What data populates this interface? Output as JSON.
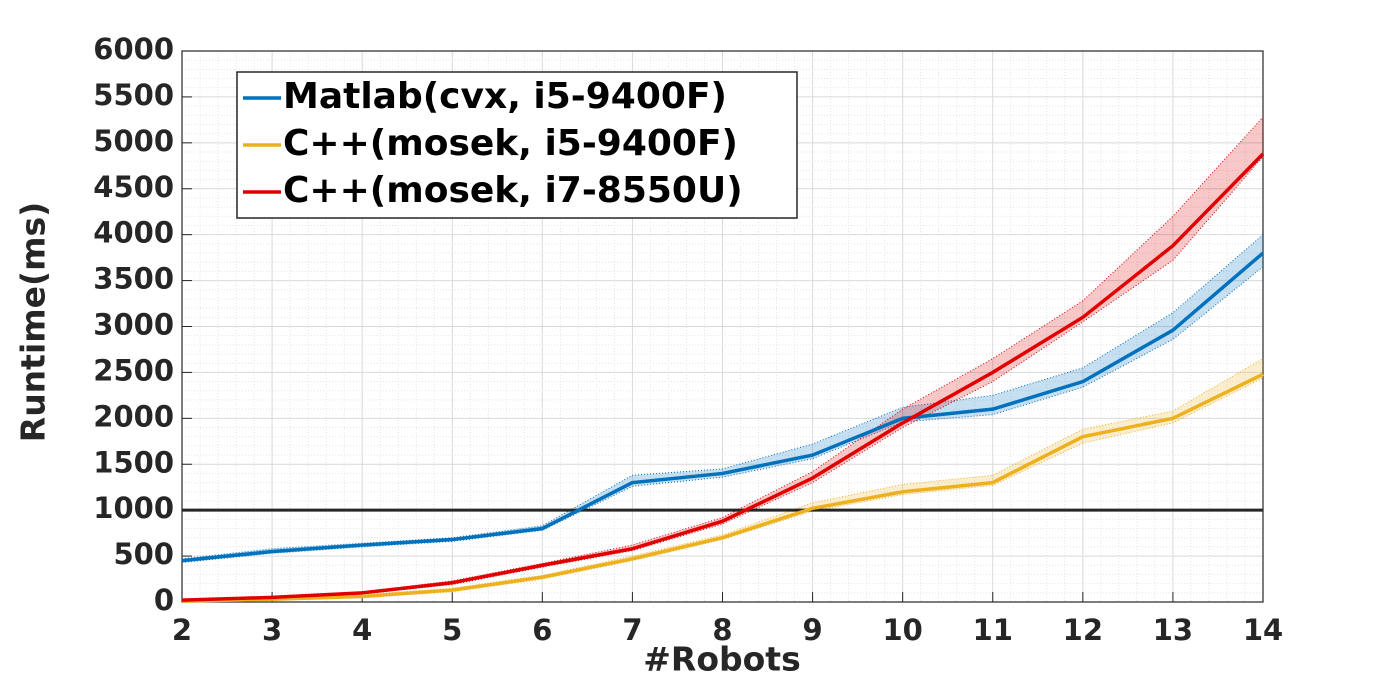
{
  "chart_data": {
    "type": "line",
    "x_label": "#Robots",
    "y_label": "Runtime(ms)",
    "x": [
      2,
      3,
      4,
      5,
      6,
      7,
      8,
      9,
      10,
      11,
      12,
      13,
      14
    ],
    "xlim": [
      2,
      14
    ],
    "xticks": [
      2,
      3,
      4,
      5,
      6,
      7,
      8,
      9,
      10,
      11,
      12,
      13,
      14
    ],
    "ylim": [
      0,
      6000
    ],
    "yticks": [
      0,
      500,
      1000,
      1500,
      2000,
      2500,
      3000,
      3500,
      4000,
      4500,
      5000,
      5500,
      6000
    ],
    "grid": true,
    "minor_grid": true,
    "legend": "upper left",
    "hlines": [
      1000
    ],
    "series": [
      {
        "name": "Matlab(cvx, i5-9400F)",
        "color": "#0072BD",
        "values": [
          450,
          550,
          620,
          680,
          800,
          1300,
          1400,
          1600,
          2000,
          2100,
          2400,
          2960,
          3800
        ],
        "upper": [
          470,
          580,
          640,
          700,
          830,
          1380,
          1450,
          1720,
          2120,
          2250,
          2550,
          3150,
          4000
        ],
        "lower": [
          430,
          530,
          600,
          660,
          780,
          1260,
          1360,
          1560,
          1960,
          2040,
          2340,
          2860,
          3650
        ]
      },
      {
        "name": "C++(mosek, i5-9400F)",
        "color": "#EDB120",
        "values": [
          10,
          30,
          60,
          130,
          270,
          470,
          700,
          1020,
          1200,
          1300,
          1800,
          2000,
          2480
        ],
        "upper": [
          20,
          40,
          80,
          150,
          290,
          500,
          730,
          1080,
          1280,
          1380,
          1880,
          2080,
          2650
        ],
        "lower": [
          5,
          20,
          50,
          110,
          250,
          450,
          680,
          990,
          1170,
          1270,
          1730,
          1950,
          2440
        ]
      },
      {
        "name": "C++(mosek, i7-8550U)",
        "color": "#E00000",
        "values": [
          20,
          50,
          100,
          210,
          400,
          580,
          880,
          1350,
          1950,
          2500,
          3100,
          3880,
          4880
        ],
        "upper": [
          30,
          60,
          110,
          230,
          420,
          620,
          920,
          1420,
          2100,
          2650,
          3280,
          4200,
          5280
        ],
        "lower": [
          10,
          40,
          90,
          190,
          380,
          560,
          850,
          1300,
          1900,
          2400,
          3050,
          3720,
          4850
        ]
      }
    ]
  }
}
